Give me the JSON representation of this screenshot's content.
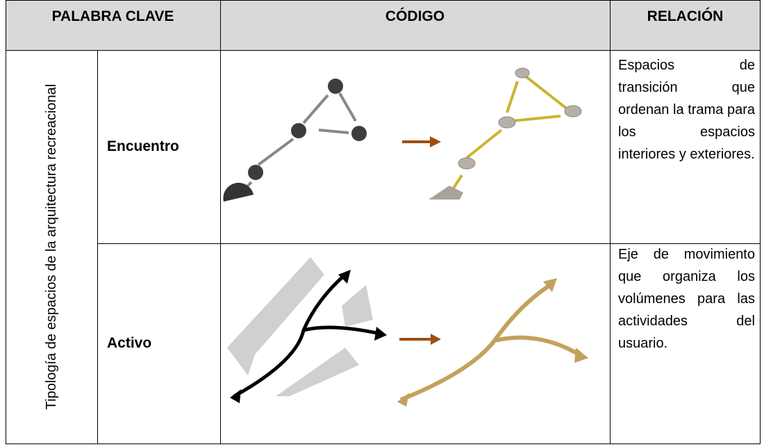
{
  "table": {
    "header": [
      "PALABRA CLAVE",
      "CÓDIGO",
      "RELACIÓN"
    ],
    "group_label": "Tipología de espacios de la arquitectura recreacional",
    "rows": [
      {
        "keyword": "Encuentro",
        "relation": "Espacios de transición que ordenan la trama para los espacios interiores y exteriores."
      },
      {
        "keyword": "Activo",
        "relation": "Eje de movimiento que organiza los volúmenes para las actividades del usuario."
      }
    ]
  }
}
